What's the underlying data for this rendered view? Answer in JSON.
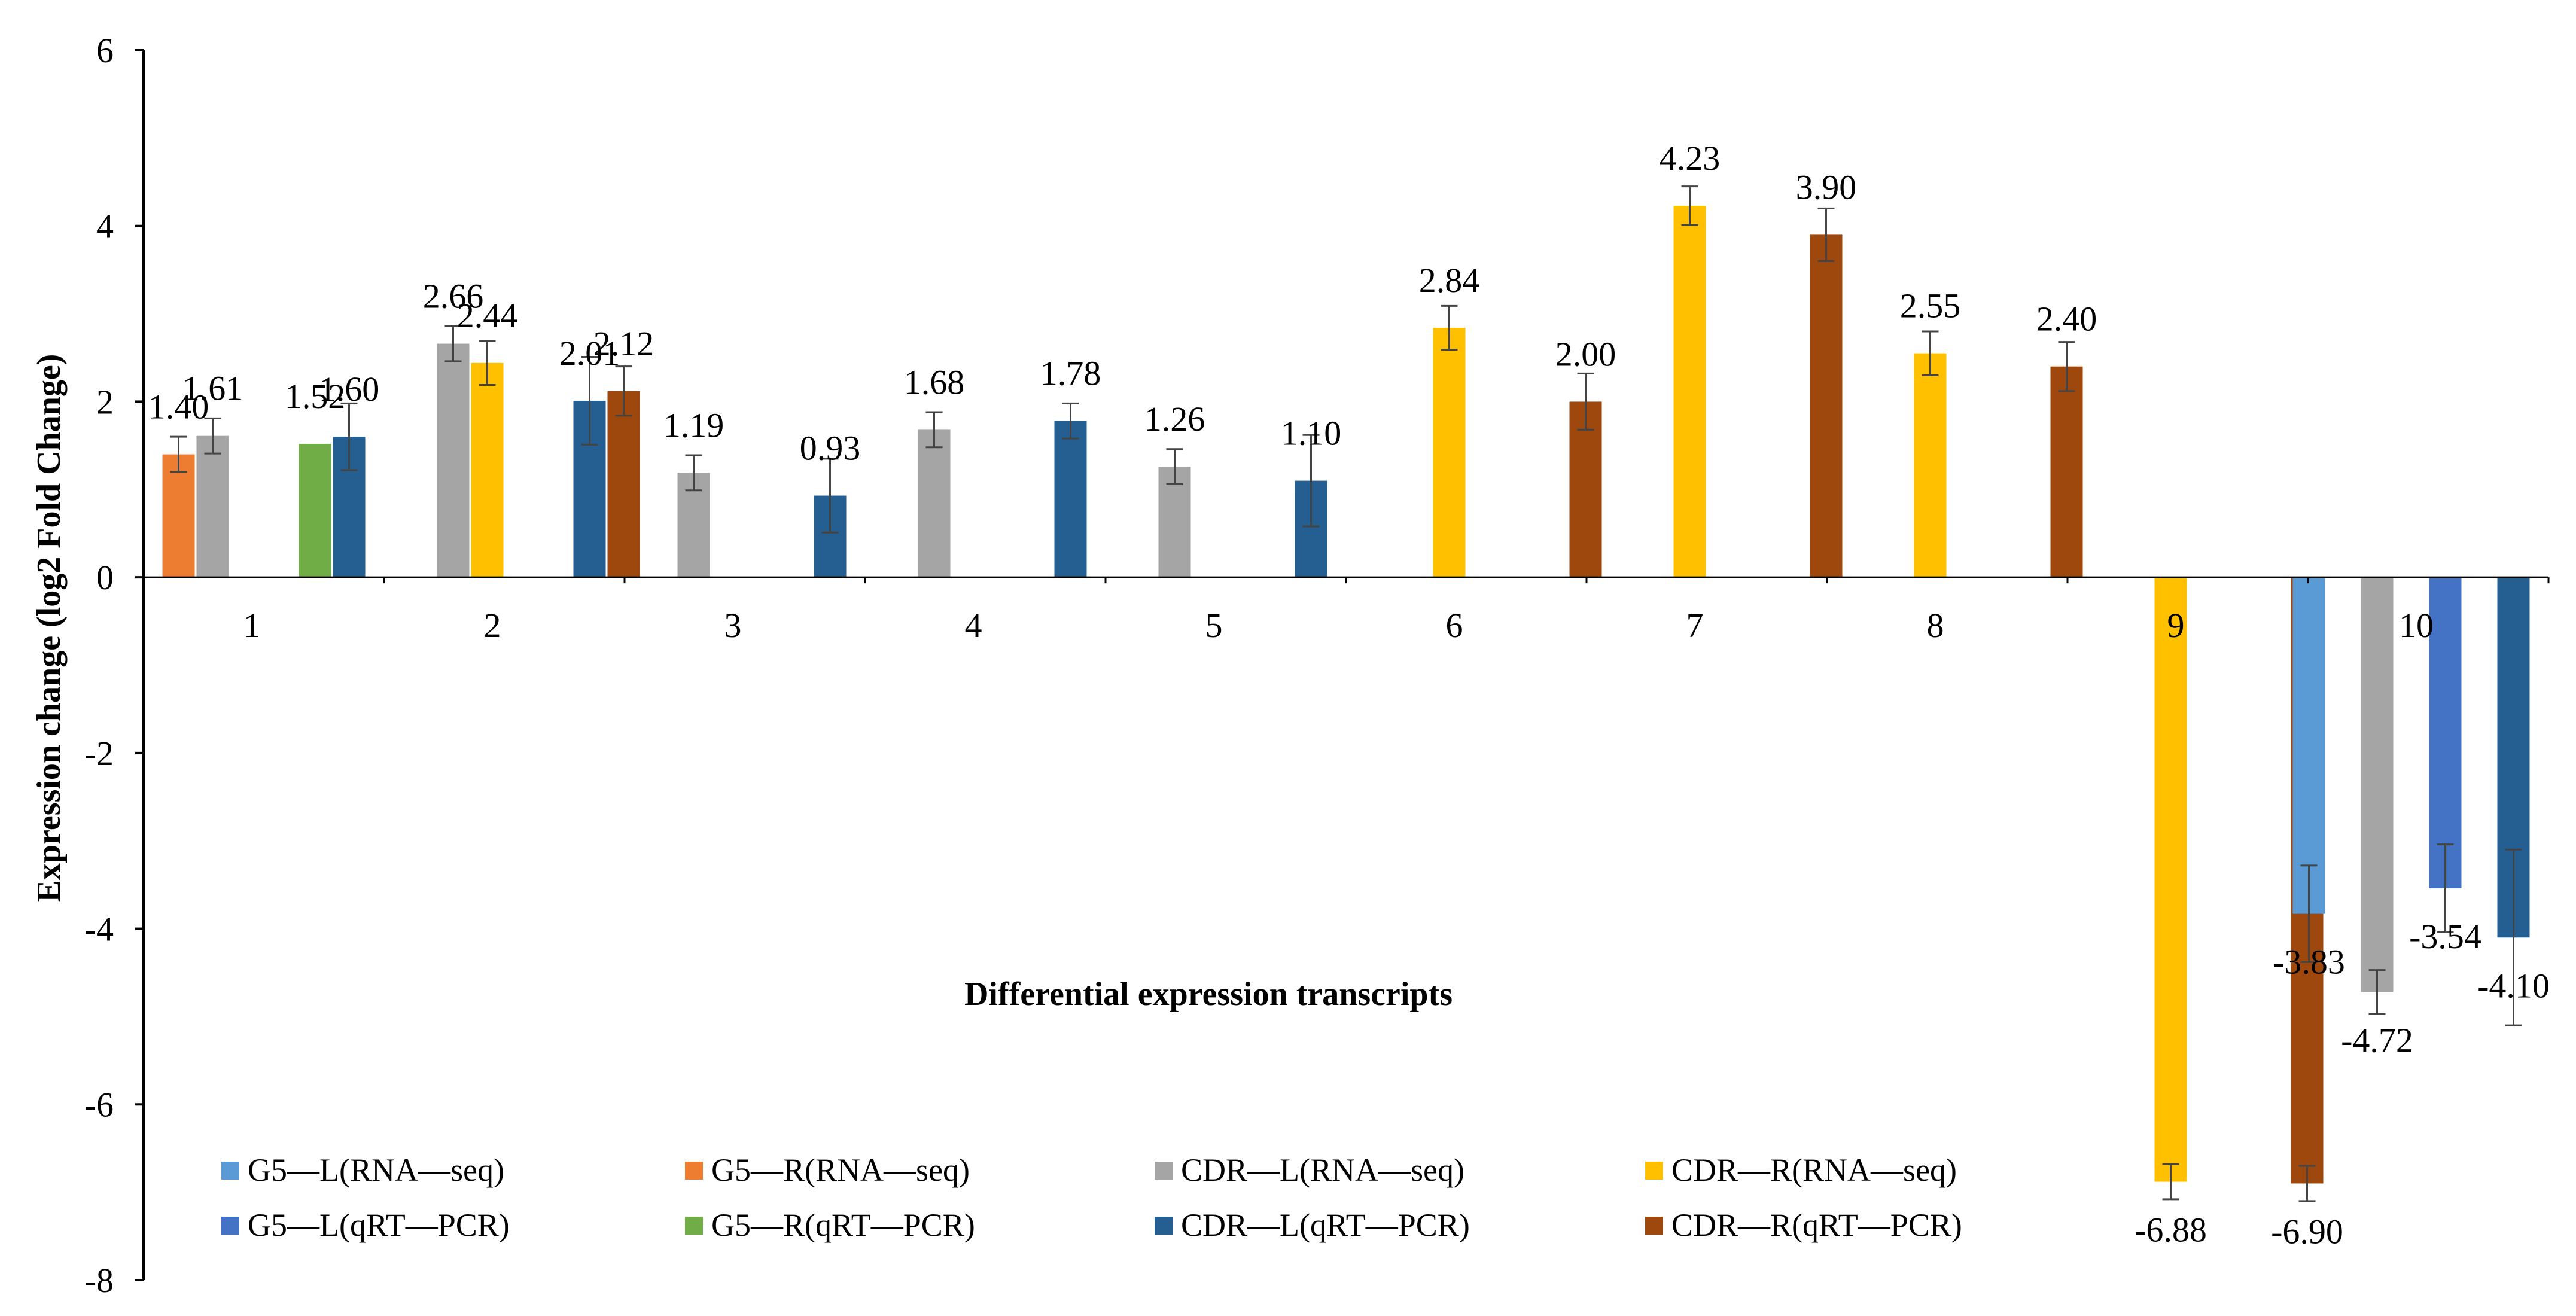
{
  "chart_data": {
    "type": "bar",
    "title": "",
    "xlabel": "Differential expression transcripts",
    "ylabel": "Expression change (log2 Fold Change)",
    "ylim": [
      -8,
      6
    ],
    "yticks": [
      -8,
      -6,
      -4,
      -2,
      0,
      2,
      4,
      6
    ],
    "categories": [
      "1",
      "2",
      "3",
      "4",
      "5",
      "6",
      "7",
      "8",
      "9",
      "10"
    ],
    "legend_position": "bottom-left",
    "series": [
      {
        "name": "G5—L(RNA—seq)",
        "color": "#5b9bd5",
        "values": [
          null,
          null,
          null,
          null,
          null,
          null,
          null,
          null,
          null,
          -3.83
        ],
        "errors": [
          null,
          null,
          null,
          null,
          null,
          null,
          null,
          null,
          null,
          0.55
        ]
      },
      {
        "name": "G5—R(RNA—seq)",
        "color": "#ed7d31",
        "values": [
          1.4,
          null,
          null,
          null,
          null,
          null,
          null,
          null,
          null,
          null
        ],
        "errors": [
          0.2,
          null,
          null,
          null,
          null,
          null,
          null,
          null,
          null,
          null
        ]
      },
      {
        "name": "CDR—L(RNA—seq)",
        "color": "#a5a5a5",
        "values": [
          1.61,
          2.66,
          1.19,
          1.68,
          1.26,
          null,
          null,
          null,
          null,
          -4.72
        ],
        "errors": [
          0.2,
          0.2,
          0.2,
          0.2,
          0.2,
          null,
          null,
          null,
          null,
          0.25
        ]
      },
      {
        "name": "CDR—R(RNA—seq)",
        "color": "#ffc000",
        "values": [
          null,
          2.44,
          null,
          null,
          null,
          2.84,
          4.23,
          2.55,
          -6.88,
          null
        ],
        "errors": [
          null,
          0.25,
          null,
          null,
          null,
          0.25,
          0.22,
          0.25,
          0.2,
          null
        ]
      },
      {
        "name": "G5—L(qRT—PCR)",
        "color": "#4472c4",
        "values": [
          null,
          null,
          null,
          null,
          null,
          null,
          null,
          null,
          null,
          -3.54
        ],
        "errors": [
          null,
          null,
          null,
          null,
          null,
          null,
          null,
          null,
          null,
          0.5
        ]
      },
      {
        "name": "G5—R(qRT—PCR)",
        "color": "#70ad47",
        "values": [
          1.52,
          null,
          null,
          null,
          null,
          null,
          null,
          null,
          null,
          null
        ],
        "errors": [
          null,
          null,
          null,
          null,
          null,
          null,
          null,
          null,
          null,
          null
        ]
      },
      {
        "name": "CDR—L(qRT—PCR)",
        "color": "#255e91",
        "values": [
          1.6,
          2.01,
          0.93,
          1.78,
          1.1,
          null,
          null,
          null,
          null,
          -4.1
        ],
        "errors": [
          0.38,
          0.5,
          0.42,
          0.2,
          0.52,
          null,
          null,
          null,
          null,
          1.0
        ]
      },
      {
        "name": "CDR—R(qRT—PCR)",
        "color": "#9e480e",
        "values": [
          null,
          2.12,
          null,
          null,
          null,
          2.0,
          3.9,
          2.4,
          -6.9,
          null
        ],
        "errors": [
          null,
          0.28,
          null,
          null,
          null,
          0.32,
          0.3,
          0.28,
          0.2,
          null
        ]
      }
    ],
    "data_labels": [
      {
        "category": "1",
        "series": "G5—R(RNA—seq)",
        "text": "1.40"
      },
      {
        "category": "1",
        "series": "CDR—L(RNA—seq)",
        "text": "1.61"
      },
      {
        "category": "1",
        "series": "G5—R(qRT—PCR)",
        "text": "1.52"
      },
      {
        "category": "1",
        "series": "CDR—L(qRT—PCR)",
        "text": "1.60"
      },
      {
        "category": "2",
        "series": "CDR—L(RNA—seq)",
        "text": "2.66"
      },
      {
        "category": "2",
        "series": "CDR—R(RNA—seq)",
        "text": "2.44"
      },
      {
        "category": "2",
        "series": "CDR—L(qRT—PCR)",
        "text": "2.01"
      },
      {
        "category": "2",
        "series": "CDR—R(qRT—PCR)",
        "text": "2.12"
      },
      {
        "category": "3",
        "series": "CDR—L(RNA—seq)",
        "text": "1.19"
      },
      {
        "category": "3",
        "series": "CDR—L(qRT—PCR)",
        "text": "0.93"
      },
      {
        "category": "4",
        "series": "CDR—L(RNA—seq)",
        "text": "1.68"
      },
      {
        "category": "4",
        "series": "CDR—L(qRT—PCR)",
        "text": "1.78"
      },
      {
        "category": "5",
        "series": "CDR—L(RNA—seq)",
        "text": "1.26"
      },
      {
        "category": "5",
        "series": "CDR—L(qRT—PCR)",
        "text": "1.10"
      },
      {
        "category": "6",
        "series": "CDR—R(RNA—seq)",
        "text": "2.84"
      },
      {
        "category": "6",
        "series": "CDR—R(qRT—PCR)",
        "text": "2.00"
      },
      {
        "category": "7",
        "series": "CDR—R(RNA—seq)",
        "text": "4.23"
      },
      {
        "category": "7",
        "series": "CDR—R(qRT—PCR)",
        "text": "3.90"
      },
      {
        "category": "8",
        "series": "CDR—R(RNA—seq)",
        "text": "2.55"
      },
      {
        "category": "8",
        "series": "CDR—R(qRT—PCR)",
        "text": "2.40"
      },
      {
        "category": "9",
        "series": "CDR—R(RNA—seq)",
        "text": "-6.88"
      },
      {
        "category": "9",
        "series": "CDR—R(qRT—PCR)",
        "text": "-6.90"
      },
      {
        "category": "10",
        "series": "G5—L(RNA—seq)",
        "text": "-3.83"
      },
      {
        "category": "10",
        "series": "CDR—L(RNA—seq)",
        "text": "-4.72"
      },
      {
        "category": "10",
        "series": "G5—L(qRT—PCR)",
        "text": "-3.54"
      },
      {
        "category": "10",
        "series": "CDR—L(qRT—PCR)",
        "text": "-4.10"
      }
    ]
  }
}
